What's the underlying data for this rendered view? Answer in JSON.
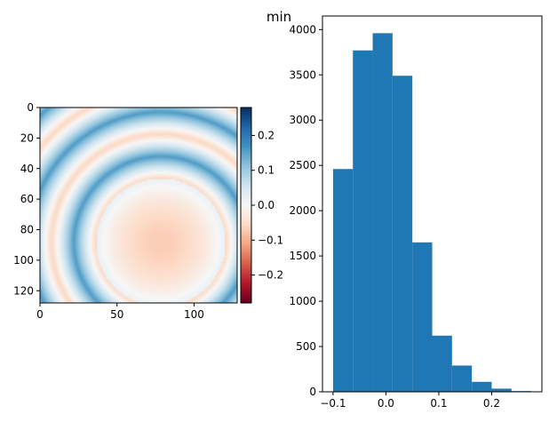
{
  "figure": {
    "suptitle": "min"
  },
  "chart_data": [
    {
      "type": "heatmap",
      "colormap": "RdBu",
      "xlim": [
        0,
        128
      ],
      "ylim": [
        128,
        0
      ],
      "x_ticks": [
        "0",
        "50",
        "100"
      ],
      "y_ticks": [
        "0",
        "20",
        "40",
        "60",
        "80",
        "100",
        "120"
      ],
      "field_description_values": {
        "center": [
          78,
          88
        ],
        "inner_radius": 42,
        "ring_period": 58,
        "amplitude": 0.09
      },
      "colorbar": {
        "vmin": -0.28,
        "vmax": 0.28,
        "ticks": [
          "−0.2",
          "−0.1",
          "0.0",
          "0.1",
          "0.2"
        ]
      }
    },
    {
      "type": "bar",
      "title": "",
      "bin_edges": [
        -0.1,
        -0.0625,
        -0.025,
        0.0125,
        0.05,
        0.0875,
        0.125,
        0.1625,
        0.2,
        0.2375,
        0.275
      ],
      "values": [
        2460,
        3770,
        3960,
        3490,
        1650,
        620,
        290,
        110,
        35,
        8
      ],
      "xlim": [
        -0.12,
        0.295
      ],
      "ylim": [
        0,
        4150
      ],
      "x_ticks": [
        "−0.1",
        "0.0",
        "0.1",
        "0.2"
      ],
      "y_ticks": [
        "0",
        "500",
        "1000",
        "1500",
        "2000",
        "2500",
        "3000",
        "3500",
        "4000"
      ],
      "color": "#1f77b4"
    }
  ]
}
